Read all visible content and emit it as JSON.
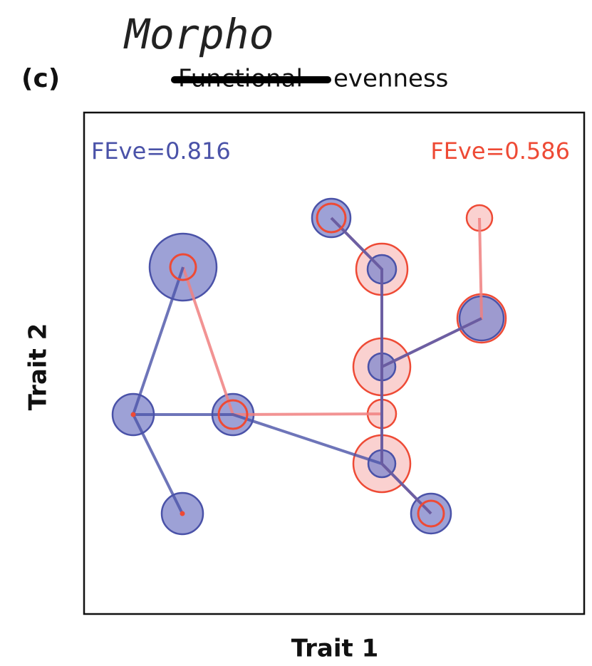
{
  "header": {
    "note": "Morpho",
    "panel": "(c)",
    "struck_word": "Functional",
    "title": "evenness"
  },
  "labels": {
    "blue_index": "FEve=0.816",
    "red_index": "FEve=0.586"
  },
  "axes": {
    "x_label": "Trait 1",
    "y_label": "Trait 2"
  }
}
